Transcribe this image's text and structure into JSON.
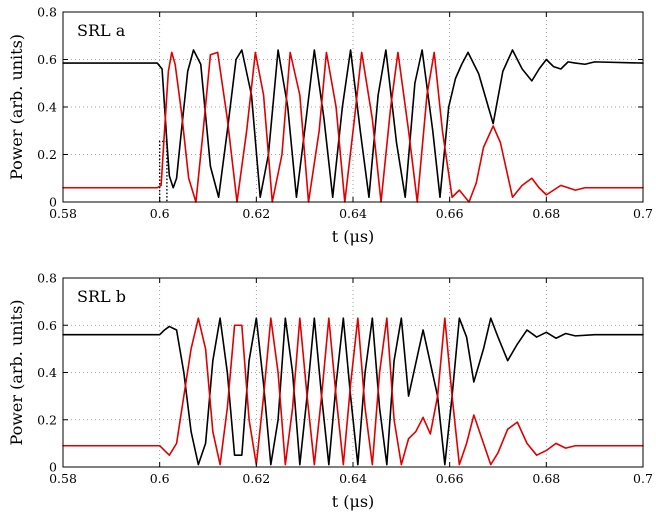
{
  "chart_data": [
    {
      "type": "line",
      "title": "SRL a",
      "xlabel": "t (μs)",
      "ylabel": "Power (arb. units)",
      "xlim": [
        0.58,
        0.7
      ],
      "ylim": [
        0,
        0.8
      ],
      "xticks": [
        "0.58",
        "0.6",
        "0.62",
        "0.64",
        "0.66",
        "0.68",
        "0.7"
      ],
      "yticks": [
        "0",
        "0.2",
        "0.4",
        "0.6",
        "0.8"
      ],
      "grid": true,
      "colors": {
        "black": "#000000",
        "red": "#e00000"
      },
      "series": [
        {
          "color": "#000000",
          "points": [
            [
              0.58,
              0.585
            ],
            [
              0.5995,
              0.585
            ],
            [
              0.6005,
              0.56
            ],
            [
              0.6015,
              0.25
            ],
            [
              0.602,
              0.11
            ],
            [
              0.6028,
              0.06
            ],
            [
              0.6035,
              0.1
            ],
            [
              0.6045,
              0.3
            ],
            [
              0.6058,
              0.55
            ],
            [
              0.607,
              0.64
            ],
            [
              0.6085,
              0.58
            ],
            [
              0.6105,
              0.15
            ],
            [
              0.6122,
              0.02
            ],
            [
              0.614,
              0.3
            ],
            [
              0.6158,
              0.6
            ],
            [
              0.617,
              0.64
            ],
            [
              0.619,
              0.45
            ],
            [
              0.6208,
              0.02
            ],
            [
              0.6225,
              0.2
            ],
            [
              0.6245,
              0.64
            ],
            [
              0.6265,
              0.4
            ],
            [
              0.6283,
              0.02
            ],
            [
              0.6303,
              0.35
            ],
            [
              0.632,
              0.64
            ],
            [
              0.634,
              0.35
            ],
            [
              0.6358,
              0.02
            ],
            [
              0.6378,
              0.4
            ],
            [
              0.6395,
              0.64
            ],
            [
              0.6415,
              0.3
            ],
            [
              0.6433,
              0.02
            ],
            [
              0.6452,
              0.45
            ],
            [
              0.6468,
              0.64
            ],
            [
              0.649,
              0.25
            ],
            [
              0.6508,
              0.02
            ],
            [
              0.6528,
              0.5
            ],
            [
              0.6543,
              0.64
            ],
            [
              0.6565,
              0.3
            ],
            [
              0.658,
              0.02
            ],
            [
              0.6598,
              0.4
            ],
            [
              0.6612,
              0.52
            ],
            [
              0.6625,
              0.58
            ],
            [
              0.6638,
              0.63
            ],
            [
              0.666,
              0.54
            ],
            [
              0.669,
              0.33
            ],
            [
              0.671,
              0.55
            ],
            [
              0.673,
              0.64
            ],
            [
              0.675,
              0.56
            ],
            [
              0.677,
              0.51
            ],
            [
              0.6785,
              0.56
            ],
            [
              0.68,
              0.6
            ],
            [
              0.6815,
              0.57
            ],
            [
              0.683,
              0.56
            ],
            [
              0.6845,
              0.59
            ],
            [
              0.686,
              0.585
            ],
            [
              0.688,
              0.58
            ],
            [
              0.69,
              0.59
            ],
            [
              0.7,
              0.585
            ]
          ]
        },
        {
          "color": "#e00000",
          "points": [
            [
              0.58,
              0.06
            ],
            [
              0.5995,
              0.06
            ],
            [
              0.6003,
              0.07
            ],
            [
              0.601,
              0.3
            ],
            [
              0.6018,
              0.55
            ],
            [
              0.6025,
              0.63
            ],
            [
              0.6032,
              0.58
            ],
            [
              0.6045,
              0.38
            ],
            [
              0.606,
              0.1
            ],
            [
              0.6075,
              0.0
            ],
            [
              0.609,
              0.3
            ],
            [
              0.6105,
              0.62
            ],
            [
              0.612,
              0.63
            ],
            [
              0.614,
              0.35
            ],
            [
              0.616,
              0.0
            ],
            [
              0.618,
              0.3
            ],
            [
              0.6198,
              0.63
            ],
            [
              0.6215,
              0.45
            ],
            [
              0.6233,
              0.0
            ],
            [
              0.6253,
              0.2
            ],
            [
              0.627,
              0.63
            ],
            [
              0.629,
              0.45
            ],
            [
              0.6308,
              0.0
            ],
            [
              0.633,
              0.3
            ],
            [
              0.6345,
              0.63
            ],
            [
              0.6365,
              0.4
            ],
            [
              0.6383,
              0.0
            ],
            [
              0.6403,
              0.35
            ],
            [
              0.6418,
              0.63
            ],
            [
              0.644,
              0.35
            ],
            [
              0.6458,
              0.0
            ],
            [
              0.6478,
              0.4
            ],
            [
              0.6493,
              0.63
            ],
            [
              0.6515,
              0.3
            ],
            [
              0.6533,
              0.0
            ],
            [
              0.6553,
              0.45
            ],
            [
              0.6568,
              0.63
            ],
            [
              0.6585,
              0.3
            ],
            [
              0.6605,
              0.02
            ],
            [
              0.662,
              0.05
            ],
            [
              0.664,
              0.0
            ],
            [
              0.6655,
              0.08
            ],
            [
              0.667,
              0.23
            ],
            [
              0.669,
              0.32
            ],
            [
              0.6705,
              0.25
            ],
            [
              0.673,
              0.02
            ],
            [
              0.675,
              0.07
            ],
            [
              0.677,
              0.1
            ],
            [
              0.6785,
              0.06
            ],
            [
              0.68,
              0.03
            ],
            [
              0.6815,
              0.05
            ],
            [
              0.683,
              0.07
            ],
            [
              0.6845,
              0.06
            ],
            [
              0.686,
              0.05
            ],
            [
              0.688,
              0.06
            ],
            [
              0.7,
              0.06
            ]
          ]
        }
      ],
      "dotted_pulse": {
        "x_start": 0.6,
        "x_end": 0.6015,
        "y_top": 0.255
      }
    },
    {
      "type": "line",
      "title": "SRL b",
      "xlabel": "t (μs)",
      "ylabel": "Power (arb. units)",
      "xlim": [
        0.58,
        0.7
      ],
      "ylim": [
        0,
        0.8
      ],
      "xticks": [
        "0.58",
        "0.6",
        "0.62",
        "0.64",
        "0.66",
        "0.68",
        "0.7"
      ],
      "yticks": [
        "0",
        "0.2",
        "0.4",
        "0.6",
        "0.8"
      ],
      "grid": true,
      "colors": {
        "black": "#000000",
        "red": "#e00000"
      },
      "series": [
        {
          "color": "#000000",
          "points": [
            [
              0.58,
              0.56
            ],
            [
              0.6,
              0.56
            ],
            [
              0.601,
              0.58
            ],
            [
              0.602,
              0.595
            ],
            [
              0.6035,
              0.58
            ],
            [
              0.605,
              0.4
            ],
            [
              0.6065,
              0.15
            ],
            [
              0.608,
              0.01
            ],
            [
              0.6095,
              0.1
            ],
            [
              0.611,
              0.45
            ],
            [
              0.6125,
              0.63
            ],
            [
              0.614,
              0.4
            ],
            [
              0.6155,
              0.05
            ],
            [
              0.617,
              0.05
            ],
            [
              0.6185,
              0.45
            ],
            [
              0.62,
              0.63
            ],
            [
              0.6215,
              0.35
            ],
            [
              0.623,
              0.01
            ],
            [
              0.6245,
              0.2
            ],
            [
              0.626,
              0.63
            ],
            [
              0.6275,
              0.4
            ],
            [
              0.629,
              0.01
            ],
            [
              0.6305,
              0.3
            ],
            [
              0.632,
              0.63
            ],
            [
              0.6335,
              0.3
            ],
            [
              0.635,
              0.01
            ],
            [
              0.6365,
              0.35
            ],
            [
              0.638,
              0.63
            ],
            [
              0.6395,
              0.3
            ],
            [
              0.641,
              0.01
            ],
            [
              0.6425,
              0.4
            ],
            [
              0.644,
              0.63
            ],
            [
              0.6455,
              0.25
            ],
            [
              0.647,
              0.01
            ],
            [
              0.6485,
              0.45
            ],
            [
              0.65,
              0.63
            ],
            [
              0.6515,
              0.3
            ],
            [
              0.653,
              0.44
            ],
            [
              0.6545,
              0.58
            ],
            [
              0.656,
              0.44
            ],
            [
              0.6575,
              0.3
            ],
            [
              0.659,
              0.01
            ],
            [
              0.6605,
              0.3
            ],
            [
              0.662,
              0.63
            ],
            [
              0.6635,
              0.55
            ],
            [
              0.665,
              0.36
            ],
            [
              0.667,
              0.5
            ],
            [
              0.6685,
              0.63
            ],
            [
              0.67,
              0.55
            ],
            [
              0.672,
              0.45
            ],
            [
              0.674,
              0.52
            ],
            [
              0.676,
              0.58
            ],
            [
              0.678,
              0.55
            ],
            [
              0.68,
              0.57
            ],
            [
              0.682,
              0.545
            ],
            [
              0.684,
              0.565
            ],
            [
              0.686,
              0.555
            ],
            [
              0.69,
              0.56
            ],
            [
              0.7,
              0.56
            ]
          ]
        },
        {
          "color": "#e00000",
          "points": [
            [
              0.58,
              0.09
            ],
            [
              0.6,
              0.09
            ],
            [
              0.601,
              0.07
            ],
            [
              0.602,
              0.05
            ],
            [
              0.6035,
              0.1
            ],
            [
              0.605,
              0.3
            ],
            [
              0.6065,
              0.5
            ],
            [
              0.608,
              0.63
            ],
            [
              0.6095,
              0.5
            ],
            [
              0.611,
              0.15
            ],
            [
              0.6125,
              0.01
            ],
            [
              0.614,
              0.25
            ],
            [
              0.6155,
              0.6
            ],
            [
              0.617,
              0.6
            ],
            [
              0.6185,
              0.2
            ],
            [
              0.62,
              0.01
            ],
            [
              0.6215,
              0.3
            ],
            [
              0.623,
              0.63
            ],
            [
              0.6245,
              0.4
            ],
            [
              0.626,
              0.01
            ],
            [
              0.6275,
              0.25
            ],
            [
              0.629,
              0.63
            ],
            [
              0.6305,
              0.3
            ],
            [
              0.632,
              0.01
            ],
            [
              0.6335,
              0.3
            ],
            [
              0.635,
              0.63
            ],
            [
              0.6365,
              0.3
            ],
            [
              0.638,
              0.01
            ],
            [
              0.6395,
              0.35
            ],
            [
              0.641,
              0.63
            ],
            [
              0.6425,
              0.25
            ],
            [
              0.644,
              0.01
            ],
            [
              0.6455,
              0.4
            ],
            [
              0.647,
              0.63
            ],
            [
              0.6485,
              0.2
            ],
            [
              0.65,
              0.01
            ],
            [
              0.6515,
              0.12
            ],
            [
              0.653,
              0.15
            ],
            [
              0.6545,
              0.21
            ],
            [
              0.656,
              0.14
            ],
            [
              0.6575,
              0.3
            ],
            [
              0.659,
              0.63
            ],
            [
              0.6605,
              0.3
            ],
            [
              0.662,
              0.01
            ],
            [
              0.6635,
              0.1
            ],
            [
              0.665,
              0.22
            ],
            [
              0.667,
              0.1
            ],
            [
              0.6685,
              0.01
            ],
            [
              0.67,
              0.06
            ],
            [
              0.672,
              0.16
            ],
            [
              0.674,
              0.19
            ],
            [
              0.676,
              0.1
            ],
            [
              0.678,
              0.05
            ],
            [
              0.68,
              0.07
            ],
            [
              0.682,
              0.1
            ],
            [
              0.684,
              0.08
            ],
            [
              0.686,
              0.09
            ],
            [
              0.69,
              0.09
            ],
            [
              0.7,
              0.09
            ]
          ]
        }
      ]
    }
  ]
}
